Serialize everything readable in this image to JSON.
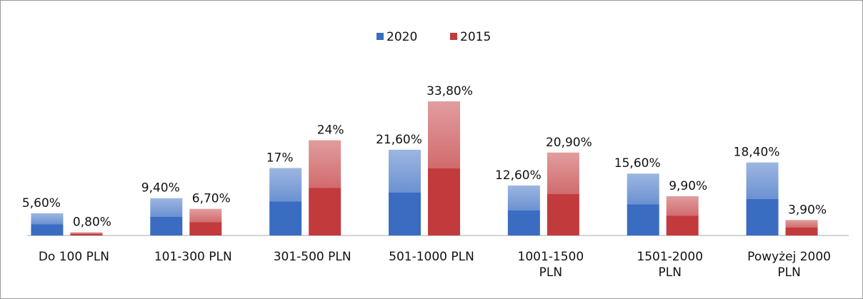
{
  "chart_data": {
    "type": "bar",
    "categories": [
      "Do 100 PLN",
      "101-300 PLN",
      "301-500 PLN",
      "501-1000 PLN",
      "1001-1500 PLN",
      "1501-2000 PLN",
      "Powyżej 2000 PLN"
    ],
    "series": [
      {
        "name": "2020",
        "color": "#3a6cc2",
        "values": [
          5.6,
          9.4,
          17,
          21.6,
          12.6,
          15.6,
          18.4
        ],
        "value_labels": [
          "5,60%",
          "9,40%",
          "17%",
          "21,60%",
          "12,60%",
          "15,60%",
          "18,40%"
        ]
      },
      {
        "name": "2015",
        "color": "#c23a3c",
        "values": [
          0.8,
          6.7,
          24,
          33.8,
          20.9,
          9.9,
          3.9
        ],
        "value_labels": [
          "0,80%",
          "6,70%",
          "24%",
          "33,80%",
          "20,90%",
          "9,90%",
          "3,90%"
        ]
      }
    ],
    "legend": "top"
  }
}
